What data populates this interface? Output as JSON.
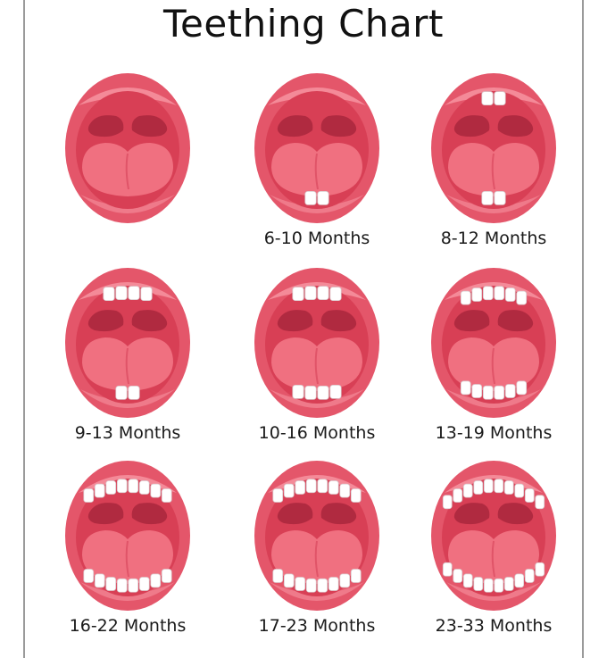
{
  "title": "Teething Chart",
  "colors": {
    "lip": "#e4566a",
    "lip_highlight": "#f48a98",
    "inner": "#d83f55",
    "palate": "#b02a40",
    "tongue": "#f07080",
    "tongue_shade": "#e05468",
    "tooth": "#ffffff",
    "tooth_edge": "#d9c8cc"
  },
  "stages": [
    {
      "label": "",
      "upper_teeth": 0,
      "lower_teeth": 0
    },
    {
      "label": "6-10 Months",
      "upper_teeth": 0,
      "lower_teeth": 2
    },
    {
      "label": "8-12 Months",
      "upper_teeth": 2,
      "lower_teeth": 2
    },
    {
      "label": "9-13 Months",
      "upper_teeth": 4,
      "lower_teeth": 2
    },
    {
      "label": "10-16 Months",
      "upper_teeth": 4,
      "lower_teeth": 4
    },
    {
      "label": "13-19 Months",
      "upper_teeth": 6,
      "lower_teeth": 6
    },
    {
      "label": "16-22 Months",
      "upper_teeth": 8,
      "lower_teeth": 8
    },
    {
      "label": "17-23 Months",
      "upper_teeth": 8,
      "lower_teeth": 8
    },
    {
      "label": "23-33 Months",
      "upper_teeth": 10,
      "lower_teeth": 10
    }
  ]
}
